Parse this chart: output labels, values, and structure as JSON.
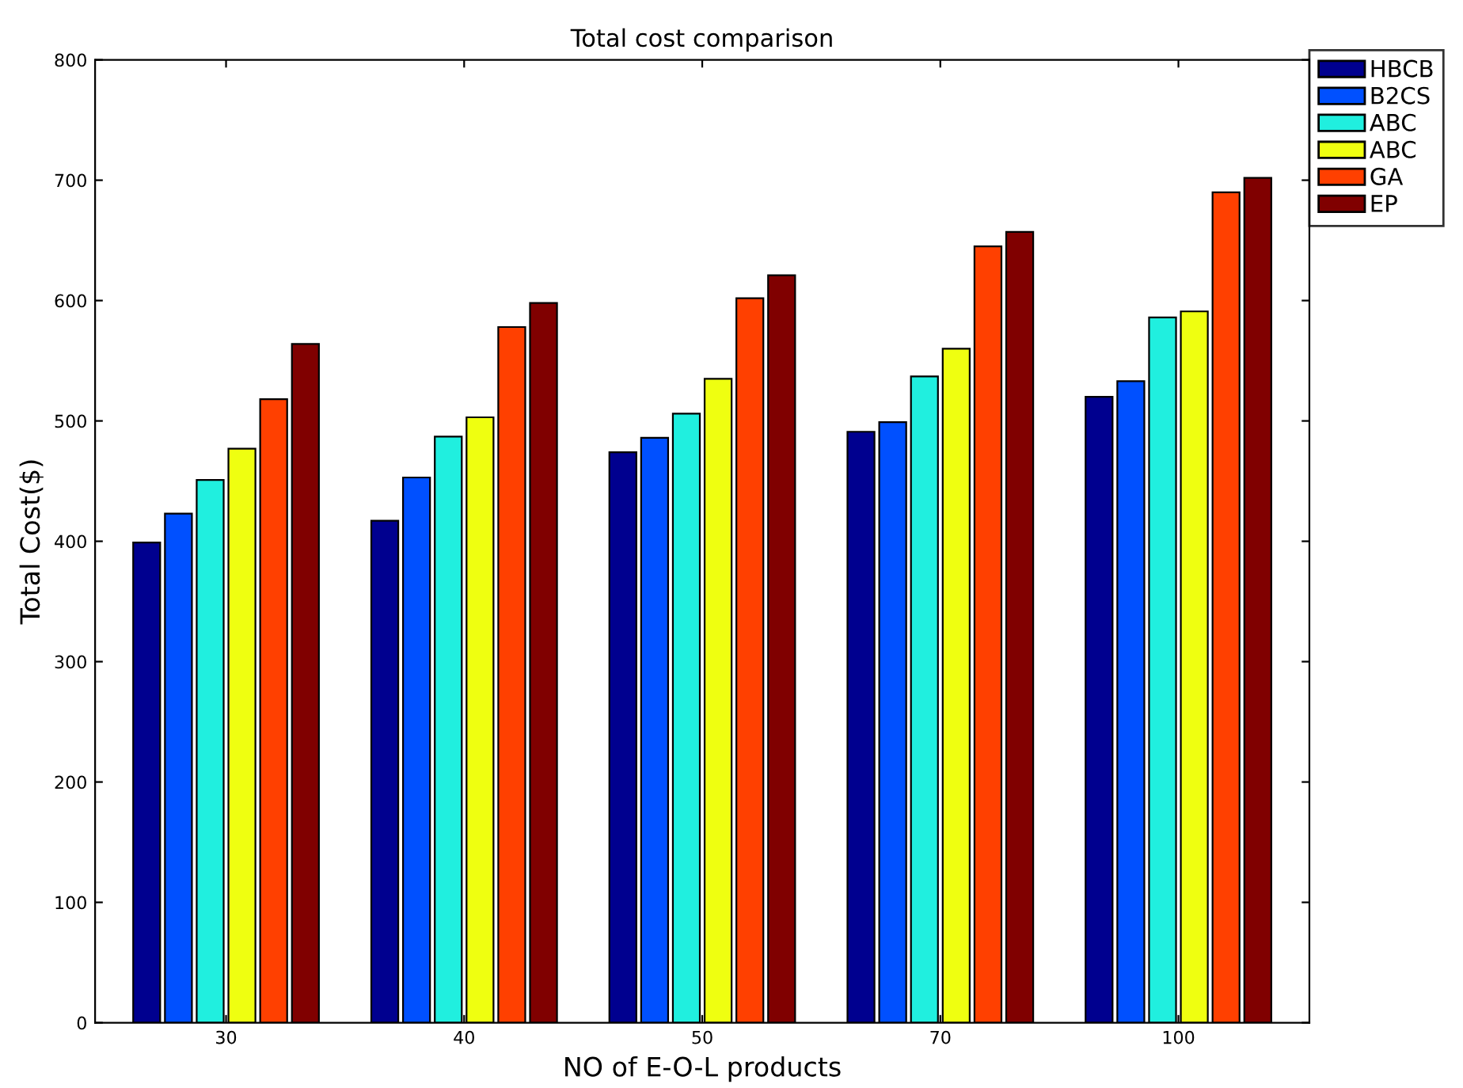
{
  "chart_data": {
    "type": "bar",
    "title": "Total cost comparison",
    "xlabel": "NO of E-O-L products",
    "ylabel": "Total Cost($)",
    "categories": [
      "30",
      "40",
      "50",
      "70",
      "100"
    ],
    "series": [
      {
        "name": "HBCB",
        "color": "#00008f",
        "values": [
          399,
          417,
          474,
          491,
          520
        ]
      },
      {
        "name": "B2CS",
        "color": "#0050ff",
        "values": [
          423,
          453,
          486,
          499,
          533
        ]
      },
      {
        "name": "ABC",
        "color": "#20efdf",
        "values": [
          451,
          487,
          506,
          537,
          586
        ]
      },
      {
        "name": "ABC",
        "color": "#efff10",
        "values": [
          477,
          503,
          535,
          560,
          591
        ]
      },
      {
        "name": "GA",
        "color": "#ff4000",
        "values": [
          518,
          578,
          602,
          645,
          690
        ]
      },
      {
        "name": "EP",
        "color": "#800000",
        "values": [
          564,
          598,
          621,
          657,
          702
        ]
      }
    ],
    "ylim": [
      0,
      800
    ],
    "yticks": [
      0,
      100,
      200,
      300,
      400,
      500,
      600,
      700,
      800
    ],
    "grid": false,
    "legend": "top right"
  }
}
